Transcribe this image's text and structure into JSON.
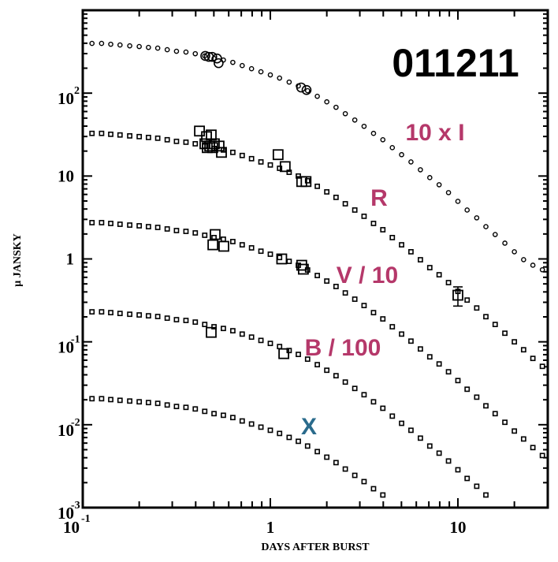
{
  "chart_data": {
    "type": "scatter",
    "title": "011211",
    "xlabel": "DAYS AFTER BURST",
    "ylabel": "μ JANSKY",
    "xscale": "log",
    "yscale": "log",
    "xlim": [
      0.1,
      30
    ],
    "ylim": [
      0.001,
      1000
    ],
    "grid": false,
    "legend": "none",
    "x_ticks": [
      {
        "value": 0.1,
        "base": "10",
        "exp": "-1"
      },
      {
        "value": 1,
        "base": "1",
        "exp": ""
      },
      {
        "value": 10,
        "base": "10",
        "exp": ""
      }
    ],
    "y_ticks": [
      {
        "value": 0.001,
        "base": "10",
        "exp": "-3"
      },
      {
        "value": 0.01,
        "base": "10",
        "exp": "-2"
      },
      {
        "value": 0.1,
        "base": "10",
        "exp": "-1"
      },
      {
        "value": 1,
        "base": "1",
        "exp": ""
      },
      {
        "value": 10,
        "base": "10",
        "exp": ""
      },
      {
        "value": 100,
        "base": "10",
        "exp": "2"
      }
    ],
    "model_x": [
      0.112,
      0.126,
      0.141,
      0.158,
      0.178,
      0.2,
      0.224,
      0.251,
      0.282,
      0.316,
      0.355,
      0.398,
      0.447,
      0.501,
      0.562,
      0.631,
      0.708,
      0.794,
      0.891,
      1.0,
      1.12,
      1.26,
      1.41,
      1.58,
      1.78,
      2.0,
      2.24,
      2.51,
      2.82,
      3.16,
      3.55,
      3.98,
      4.47,
      5.01,
      5.62,
      6.31,
      7.08,
      7.94,
      8.91,
      10.0,
      11.2,
      12.6,
      14.1,
      15.8,
      17.8,
      20.0,
      22.4,
      25.1,
      28.2
    ],
    "series": [
      {
        "name": "10 x I",
        "label_color": "#b5386a",
        "marker": "circle",
        "model": [
          398,
          398,
          389,
          381,
          372,
          365,
          356,
          349,
          334,
          320,
          313,
          299,
          281,
          262,
          251,
          235,
          215,
          197,
          181,
          166,
          152,
          136,
          122,
          107,
          91.6,
          78.5,
          67.5,
          56.5,
          47.4,
          39.8,
          32.7,
          27.4,
          22.0,
          18.1,
          14.8,
          11.9,
          9.57,
          7.85,
          6.31,
          4.95,
          3.89,
          3.13,
          2.45,
          1.97,
          1.55,
          1.22,
          0.98,
          0.84,
          0.74
        ],
        "observed": [
          {
            "x": 0.45,
            "y": 281
          },
          {
            "x": 0.47,
            "y": 274
          },
          {
            "x": 0.49,
            "y": 274
          },
          {
            "x": 0.52,
            "y": 262
          },
          {
            "x": 0.53,
            "y": 230
          },
          {
            "x": 1.46,
            "y": 117
          },
          {
            "x": 1.56,
            "y": 109
          }
        ]
      },
      {
        "name": "R",
        "label_color": "#b5386a",
        "marker": "square",
        "model": [
          32.7,
          32.7,
          31.9,
          31.3,
          30.5,
          29.9,
          29.2,
          28.6,
          27.4,
          26.2,
          25.6,
          24.5,
          23.0,
          21.5,
          20.6,
          19.3,
          17.7,
          16.2,
          14.8,
          13.6,
          12.4,
          11.1,
          10.0,
          8.77,
          7.52,
          6.44,
          5.53,
          4.63,
          3.89,
          3.27,
          2.68,
          2.25,
          1.81,
          1.48,
          1.22,
          0.977,
          0.785,
          0.644,
          0.518,
          0.406,
          0.319,
          0.256,
          0.201,
          0.162,
          0.127,
          0.1,
          0.0802,
          0.0631,
          0.0506
        ],
        "observed": [
          {
            "x": 0.419,
            "y": 34.9
          },
          {
            "x": 0.457,
            "y": 29.9
          },
          {
            "x": 0.484,
            "y": 31.3
          },
          {
            "x": 0.448,
            "y": 24.5
          },
          {
            "x": 0.475,
            "y": 23.0
          },
          {
            "x": 0.503,
            "y": 24.5
          },
          {
            "x": 0.461,
            "y": 22.0
          },
          {
            "x": 0.493,
            "y": 22.0
          },
          {
            "x": 0.533,
            "y": 23.0
          },
          {
            "x": 0.549,
            "y": 19.3
          },
          {
            "x": 1.1,
            "y": 18.1
          },
          {
            "x": 1.2,
            "y": 13.0
          },
          {
            "x": 1.47,
            "y": 8.58
          },
          {
            "x": 1.55,
            "y": 8.58
          },
          {
            "x": 10.0,
            "y": 0.365,
            "err": [
              0.27,
              0.46
            ]
          }
        ]
      },
      {
        "name": "V / 10",
        "label_color": "#b5386a",
        "marker": "square",
        "model": [
          2.74,
          2.74,
          2.68,
          2.62,
          2.56,
          2.51,
          2.45,
          2.4,
          2.3,
          2.2,
          2.15,
          2.06,
          1.93,
          1.81,
          1.73,
          1.62,
          1.48,
          1.36,
          1.24,
          1.14,
          1.04,
          0.935,
          0.839,
          0.736,
          0.631,
          0.541,
          0.465,
          0.389,
          0.327,
          0.274,
          0.225,
          0.189,
          0.152,
          0.124,
          0.102,
          0.082,
          0.0659,
          0.0541,
          0.0435,
          0.0341,
          0.0268,
          0.0215,
          0.0169,
          0.0136,
          0.0107,
          0.00839,
          0.00673,
          0.0053,
          0.00425
        ],
        "observed": [
          {
            "x": 0.508,
            "y": 1.97
          },
          {
            "x": 0.494,
            "y": 1.48
          },
          {
            "x": 0.565,
            "y": 1.42
          },
          {
            "x": 1.15,
            "y": 1.0
          },
          {
            "x": 1.47,
            "y": 0.839
          },
          {
            "x": 1.5,
            "y": 0.752
          }
        ]
      },
      {
        "name": "B / 100",
        "label_color": "#b5386a",
        "marker": "square",
        "model": [
          0.23,
          0.23,
          0.225,
          0.22,
          0.215,
          0.211,
          0.206,
          0.202,
          0.193,
          0.185,
          0.181,
          0.173,
          0.162,
          0.152,
          0.145,
          0.136,
          0.124,
          0.114,
          0.104,
          0.0957,
          0.0877,
          0.0785,
          0.0705,
          0.0618,
          0.053,
          0.0454,
          0.039,
          0.0327,
          0.0274,
          0.023,
          0.0189,
          0.0158,
          0.0127,
          0.0104,
          0.00857,
          0.00689,
          0.00553,
          0.00454,
          0.00365,
          0.00286,
          0.00225,
          0.00181,
          0.00142
        ],
        "observed": [
          {
            "x": 0.484,
            "y": 0.13
          },
          {
            "x": 1.18,
            "y": 0.072
          }
        ]
      },
      {
        "name": "X",
        "label_color": "#2a6b8c",
        "marker": "square",
        "model": [
          0.0206,
          0.0206,
          0.0201,
          0.0197,
          0.0193,
          0.0189,
          0.0185,
          0.0181,
          0.0173,
          0.0166,
          0.0162,
          0.0155,
          0.0145,
          0.0136,
          0.013,
          0.0122,
          0.0111,
          0.0102,
          0.00935,
          0.00857,
          0.00785,
          0.00703,
          0.00631,
          0.00553,
          0.00474,
          0.00406,
          0.00349,
          0.00292,
          0.00245,
          0.00206,
          0.00169,
          0.00142
        ],
        "observed": []
      }
    ]
  }
}
